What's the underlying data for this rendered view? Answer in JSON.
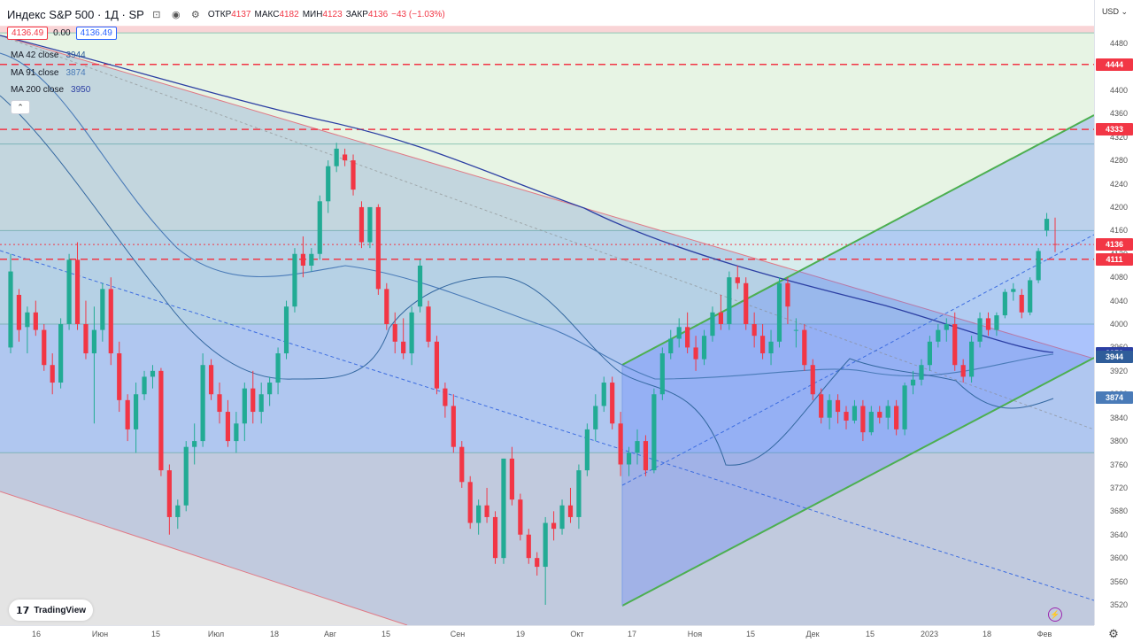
{
  "header": {
    "symbol_title": "Индекс S&P 500 · 1Д · SP",
    "ohlc": [
      {
        "label": "ОТКР",
        "value": "4137"
      },
      {
        "label": "МАКС",
        "value": "4182"
      },
      {
        "label": "МИН",
        "value": "4123"
      },
      {
        "label": "ЗАКР",
        "value": "4136"
      }
    ],
    "change": "−43 (−1.03%)",
    "sell_price": "4136.49",
    "spread": "0.00",
    "buy_price": "4136.49"
  },
  "indicators": [
    {
      "label": "MA 42 close",
      "value": "3944",
      "color": "#2f5d9a"
    },
    {
      "label": "MA 91 close",
      "value": "3874",
      "color": "#4a7bb8"
    },
    {
      "label": "MA 200 close",
      "value": "3950",
      "color": "#2c3fa3"
    }
  ],
  "price_axis": {
    "currency": "USD",
    "ticks": [
      "4480",
      "4440",
      "4400",
      "4360",
      "4320",
      "4280",
      "4240",
      "4200",
      "4160",
      "4120",
      "4080",
      "4040",
      "4000",
      "3960",
      "3920",
      "3880",
      "3840",
      "3800",
      "3760",
      "3720",
      "3680",
      "3640",
      "3600",
      "3560",
      "3520"
    ],
    "badges": [
      {
        "label": "4444",
        "price": 4444,
        "color": "#f23645"
      },
      {
        "label": "4333",
        "price": 4333,
        "color": "#f23645"
      },
      {
        "label": "4136",
        "price": 4136,
        "color": "#f23645"
      },
      {
        "label": "4111",
        "price": 4111,
        "color": "#f23645"
      },
      {
        "label": "3950",
        "price": 3950,
        "color": "#2c3fa3"
      },
      {
        "label": "3944",
        "price": 3944,
        "color": "#2f5d9a"
      },
      {
        "label": "3874",
        "price": 3874,
        "color": "#4a7bb8"
      }
    ]
  },
  "time_axis": {
    "labels": [
      "16",
      "Июн",
      "15",
      "Июл",
      "18",
      "Авг",
      "15",
      "Сен",
      "19",
      "Окт",
      "17",
      "Ноя",
      "15",
      "Дек",
      "15",
      "2023",
      "18",
      "Фев"
    ]
  },
  "branding": {
    "logo_text": "TradingView"
  },
  "colors": {
    "up": "#22ab94",
    "down": "#f23645",
    "channel": "#4caf50",
    "resistance": "#f23645"
  },
  "chart_data": {
    "type": "candlestick",
    "title": "",
    "xlabel": "",
    "ylabel": "",
    "ylim": [
      3500,
      4510
    ],
    "grid": false,
    "horizontal_levels": [
      4444,
      4333,
      4136,
      4111
    ],
    "zone_levels": [
      4510,
      4498,
      4308,
      4160,
      4000,
      3780
    ],
    "candles": [
      {
        "o": 3960,
        "h": 4120,
        "l": 3950,
        "c": 4090
      },
      {
        "o": 4050,
        "h": 4060,
        "l": 3970,
        "c": 3990
      },
      {
        "o": 3995,
        "h": 4030,
        "l": 3950,
        "c": 4020
      },
      {
        "o": 4020,
        "h": 4040,
        "l": 3980,
        "c": 3990
      },
      {
        "o": 3990,
        "h": 4000,
        "l": 3920,
        "c": 3930
      },
      {
        "o": 3930,
        "h": 3950,
        "l": 3880,
        "c": 3900
      },
      {
        "o": 3900,
        "h": 4010,
        "l": 3890,
        "c": 4000
      },
      {
        "o": 4000,
        "h": 4120,
        "l": 3990,
        "c": 4110
      },
      {
        "o": 4110,
        "h": 4140,
        "l": 3990,
        "c": 4000
      },
      {
        "o": 4000,
        "h": 4040,
        "l": 3940,
        "c": 3950
      },
      {
        "o": 3950,
        "h": 4030,
        "l": 3830,
        "c": 3990
      },
      {
        "o": 3990,
        "h": 4070,
        "l": 3970,
        "c": 4060
      },
      {
        "o": 4060,
        "h": 4080,
        "l": 3930,
        "c": 3950
      },
      {
        "o": 3950,
        "h": 3970,
        "l": 3850,
        "c": 3870
      },
      {
        "o": 3870,
        "h": 3880,
        "l": 3800,
        "c": 3820
      },
      {
        "o": 3820,
        "h": 3900,
        "l": 3780,
        "c": 3880
      },
      {
        "o": 3880,
        "h": 3920,
        "l": 3870,
        "c": 3910
      },
      {
        "o": 3910,
        "h": 3930,
        "l": 3890,
        "c": 3920
      },
      {
        "o": 3920,
        "h": 3925,
        "l": 3740,
        "c": 3750
      },
      {
        "o": 3750,
        "h": 3760,
        "l": 3640,
        "c": 3670
      },
      {
        "o": 3670,
        "h": 3700,
        "l": 3650,
        "c": 3690
      },
      {
        "o": 3690,
        "h": 3800,
        "l": 3680,
        "c": 3790
      },
      {
        "o": 3790,
        "h": 3830,
        "l": 3760,
        "c": 3800
      },
      {
        "o": 3800,
        "h": 3950,
        "l": 3790,
        "c": 3930
      },
      {
        "o": 3930,
        "h": 3940,
        "l": 3870,
        "c": 3880
      },
      {
        "o": 3880,
        "h": 3900,
        "l": 3830,
        "c": 3850
      },
      {
        "o": 3850,
        "h": 3870,
        "l": 3790,
        "c": 3800
      },
      {
        "o": 3800,
        "h": 3850,
        "l": 3780,
        "c": 3830
      },
      {
        "o": 3830,
        "h": 3900,
        "l": 3800,
        "c": 3890
      },
      {
        "o": 3890,
        "h": 3920,
        "l": 3830,
        "c": 3850
      },
      {
        "o": 3850,
        "h": 3900,
        "l": 3830,
        "c": 3880
      },
      {
        "o": 3880,
        "h": 3910,
        "l": 3860,
        "c": 3900
      },
      {
        "o": 3900,
        "h": 3960,
        "l": 3880,
        "c": 3950
      },
      {
        "o": 3950,
        "h": 4040,
        "l": 3940,
        "c": 4030
      },
      {
        "o": 4030,
        "h": 4130,
        "l": 4020,
        "c": 4120
      },
      {
        "o": 4120,
        "h": 4150,
        "l": 4080,
        "c": 4100
      },
      {
        "o": 4100,
        "h": 4130,
        "l": 4090,
        "c": 4120
      },
      {
        "o": 4120,
        "h": 4220,
        "l": 4110,
        "c": 4210
      },
      {
        "o": 4210,
        "h": 4280,
        "l": 4190,
        "c": 4270
      },
      {
        "o": 4270,
        "h": 4310,
        "l": 4260,
        "c": 4300
      },
      {
        "o": 4290,
        "h": 4300,
        "l": 4270,
        "c": 4280
      },
      {
        "o": 4280,
        "h": 4290,
        "l": 4220,
        "c": 4230
      },
      {
        "o": 4200,
        "h": 4210,
        "l": 4130,
        "c": 4140
      },
      {
        "o": 4140,
        "h": 4200,
        "l": 4130,
        "c": 4200
      },
      {
        "o": 4200,
        "h": 4205,
        "l": 4050,
        "c": 4060
      },
      {
        "o": 4060,
        "h": 4070,
        "l": 3990,
        "c": 4000
      },
      {
        "o": 4000,
        "h": 4020,
        "l": 3950,
        "c": 3970
      },
      {
        "o": 3970,
        "h": 4010,
        "l": 3940,
        "c": 3950
      },
      {
        "o": 3950,
        "h": 4030,
        "l": 3930,
        "c": 4020
      },
      {
        "o": 4030,
        "h": 4110,
        "l": 4020,
        "c": 4100
      },
      {
        "o": 4030,
        "h": 4040,
        "l": 3960,
        "c": 3970
      },
      {
        "o": 3970,
        "h": 3980,
        "l": 3880,
        "c": 3890
      },
      {
        "o": 3890,
        "h": 3900,
        "l": 3840,
        "c": 3860
      },
      {
        "o": 3860,
        "h": 3880,
        "l": 3780,
        "c": 3790
      },
      {
        "o": 3790,
        "h": 3800,
        "l": 3720,
        "c": 3730
      },
      {
        "o": 3730,
        "h": 3740,
        "l": 3650,
        "c": 3660
      },
      {
        "o": 3660,
        "h": 3700,
        "l": 3640,
        "c": 3690
      },
      {
        "o": 3690,
        "h": 3720,
        "l": 3660,
        "c": 3670
      },
      {
        "o": 3670,
        "h": 3680,
        "l": 3590,
        "c": 3600
      },
      {
        "o": 3600,
        "h": 3770,
        "l": 3590,
        "c": 3770
      },
      {
        "o": 3770,
        "h": 3790,
        "l": 3690,
        "c": 3700
      },
      {
        "o": 3700,
        "h": 3710,
        "l": 3630,
        "c": 3640
      },
      {
        "o": 3640,
        "h": 3650,
        "l": 3590,
        "c": 3600
      },
      {
        "o": 3600,
        "h": 3610,
        "l": 3570,
        "c": 3585
      },
      {
        "o": 3585,
        "h": 3670,
        "l": 3520,
        "c": 3660
      },
      {
        "o": 3660,
        "h": 3680,
        "l": 3630,
        "c": 3650
      },
      {
        "o": 3650,
        "h": 3700,
        "l": 3640,
        "c": 3690
      },
      {
        "o": 3690,
        "h": 3720,
        "l": 3660,
        "c": 3670
      },
      {
        "o": 3670,
        "h": 3760,
        "l": 3650,
        "c": 3750
      },
      {
        "o": 3750,
        "h": 3830,
        "l": 3740,
        "c": 3820
      },
      {
        "o": 3820,
        "h": 3880,
        "l": 3800,
        "c": 3860
      },
      {
        "o": 3860,
        "h": 3910,
        "l": 3850,
        "c": 3900
      },
      {
        "o": 3900,
        "h": 3910,
        "l": 3820,
        "c": 3830
      },
      {
        "o": 3830,
        "h": 3850,
        "l": 3740,
        "c": 3760
      },
      {
        "o": 3760,
        "h": 3790,
        "l": 3740,
        "c": 3780
      },
      {
        "o": 3780,
        "h": 3820,
        "l": 3760,
        "c": 3800
      },
      {
        "o": 3800,
        "h": 3810,
        "l": 3740,
        "c": 3750
      },
      {
        "o": 3750,
        "h": 3890,
        "l": 3745,
        "c": 3880
      },
      {
        "o": 3880,
        "h": 3960,
        "l": 3870,
        "c": 3950
      },
      {
        "o": 3950,
        "h": 3990,
        "l": 3940,
        "c": 3975
      },
      {
        "o": 3975,
        "h": 4010,
        "l": 3960,
        "c": 3995
      },
      {
        "o": 3995,
        "h": 4020,
        "l": 3950,
        "c": 3960
      },
      {
        "o": 3960,
        "h": 3980,
        "l": 3920,
        "c": 3940
      },
      {
        "o": 3940,
        "h": 3990,
        "l": 3930,
        "c": 3980
      },
      {
        "o": 3980,
        "h": 4030,
        "l": 3970,
        "c": 4020
      },
      {
        "o": 4020,
        "h": 4050,
        "l": 3990,
        "c": 4000
      },
      {
        "o": 4000,
        "h": 4090,
        "l": 3990,
        "c": 4080
      },
      {
        "o": 4080,
        "h": 4100,
        "l": 4060,
        "c": 4070
      },
      {
        "o": 4070,
        "h": 4080,
        "l": 3990,
        "c": 4000
      },
      {
        "o": 4000,
        "h": 4020,
        "l": 3960,
        "c": 3980
      },
      {
        "o": 3980,
        "h": 4000,
        "l": 3940,
        "c": 3950
      },
      {
        "o": 3950,
        "h": 3990,
        "l": 3930,
        "c": 3970
      },
      {
        "o": 3970,
        "h": 4080,
        "l": 3960,
        "c": 4070
      },
      {
        "o": 4070,
        "h": 4080,
        "l": 4000,
        "c": 4030
      },
      {
        "o": 3990,
        "h": 4010,
        "l": 3960,
        "c": 3990
      },
      {
        "o": 3990,
        "h": 4000,
        "l": 3920,
        "c": 3930
      },
      {
        "o": 3930,
        "h": 3940,
        "l": 3870,
        "c": 3880
      },
      {
        "o": 3880,
        "h": 3890,
        "l": 3830,
        "c": 3840
      },
      {
        "o": 3840,
        "h": 3880,
        "l": 3820,
        "c": 3870
      },
      {
        "o": 3870,
        "h": 3880,
        "l": 3830,
        "c": 3850
      },
      {
        "o": 3850,
        "h": 3860,
        "l": 3820,
        "c": 3835
      },
      {
        "o": 3835,
        "h": 3870,
        "l": 3830,
        "c": 3860
      },
      {
        "o": 3860,
        "h": 3870,
        "l": 3800,
        "c": 3815
      },
      {
        "o": 3815,
        "h": 3860,
        "l": 3810,
        "c": 3850
      },
      {
        "o": 3850,
        "h": 3860,
        "l": 3830,
        "c": 3840
      },
      {
        "o": 3840,
        "h": 3870,
        "l": 3820,
        "c": 3860
      },
      {
        "o": 3860,
        "h": 3870,
        "l": 3810,
        "c": 3820
      },
      {
        "o": 3820,
        "h": 3900,
        "l": 3810,
        "c": 3895
      },
      {
        "o": 3895,
        "h": 3920,
        "l": 3880,
        "c": 3905
      },
      {
        "o": 3905,
        "h": 3940,
        "l": 3895,
        "c": 3930
      },
      {
        "o": 3930,
        "h": 3980,
        "l": 3920,
        "c": 3970
      },
      {
        "o": 3970,
        "h": 4000,
        "l": 3960,
        "c": 3990
      },
      {
        "o": 3990,
        "h": 4010,
        "l": 3970,
        "c": 4000
      },
      {
        "o": 4000,
        "h": 4020,
        "l": 3920,
        "c": 3930
      },
      {
        "o": 3930,
        "h": 3940,
        "l": 3900,
        "c": 3910
      },
      {
        "o": 3910,
        "h": 3980,
        "l": 3900,
        "c": 3970
      },
      {
        "o": 3970,
        "h": 4020,
        "l": 3960,
        "c": 4010
      },
      {
        "o": 4010,
        "h": 4020,
        "l": 3980,
        "c": 3990
      },
      {
        "o": 3990,
        "h": 4020,
        "l": 3980,
        "c": 4015
      },
      {
        "o": 4015,
        "h": 4060,
        "l": 4010,
        "c": 4055
      },
      {
        "o": 4055,
        "h": 4070,
        "l": 4040,
        "c": 4060
      },
      {
        "o": 4050,
        "h": 4060,
        "l": 4010,
        "c": 4020
      },
      {
        "o": 4020,
        "h": 4080,
        "l": 4015,
        "c": 4075
      },
      {
        "o": 4075,
        "h": 4130,
        "l": 4070,
        "c": 4125
      },
      {
        "o": 4160,
        "h": 4190,
        "l": 4150,
        "c": 4180
      },
      {
        "o": 4137,
        "h": 4182,
        "l": 4123,
        "c": 4136
      }
    ],
    "series": [
      {
        "name": "MA 42 close",
        "last_value": 3944
      },
      {
        "name": "MA 91 close",
        "last_value": 3874
      },
      {
        "name": "MA 200 close",
        "last_value": 3950
      }
    ]
  }
}
